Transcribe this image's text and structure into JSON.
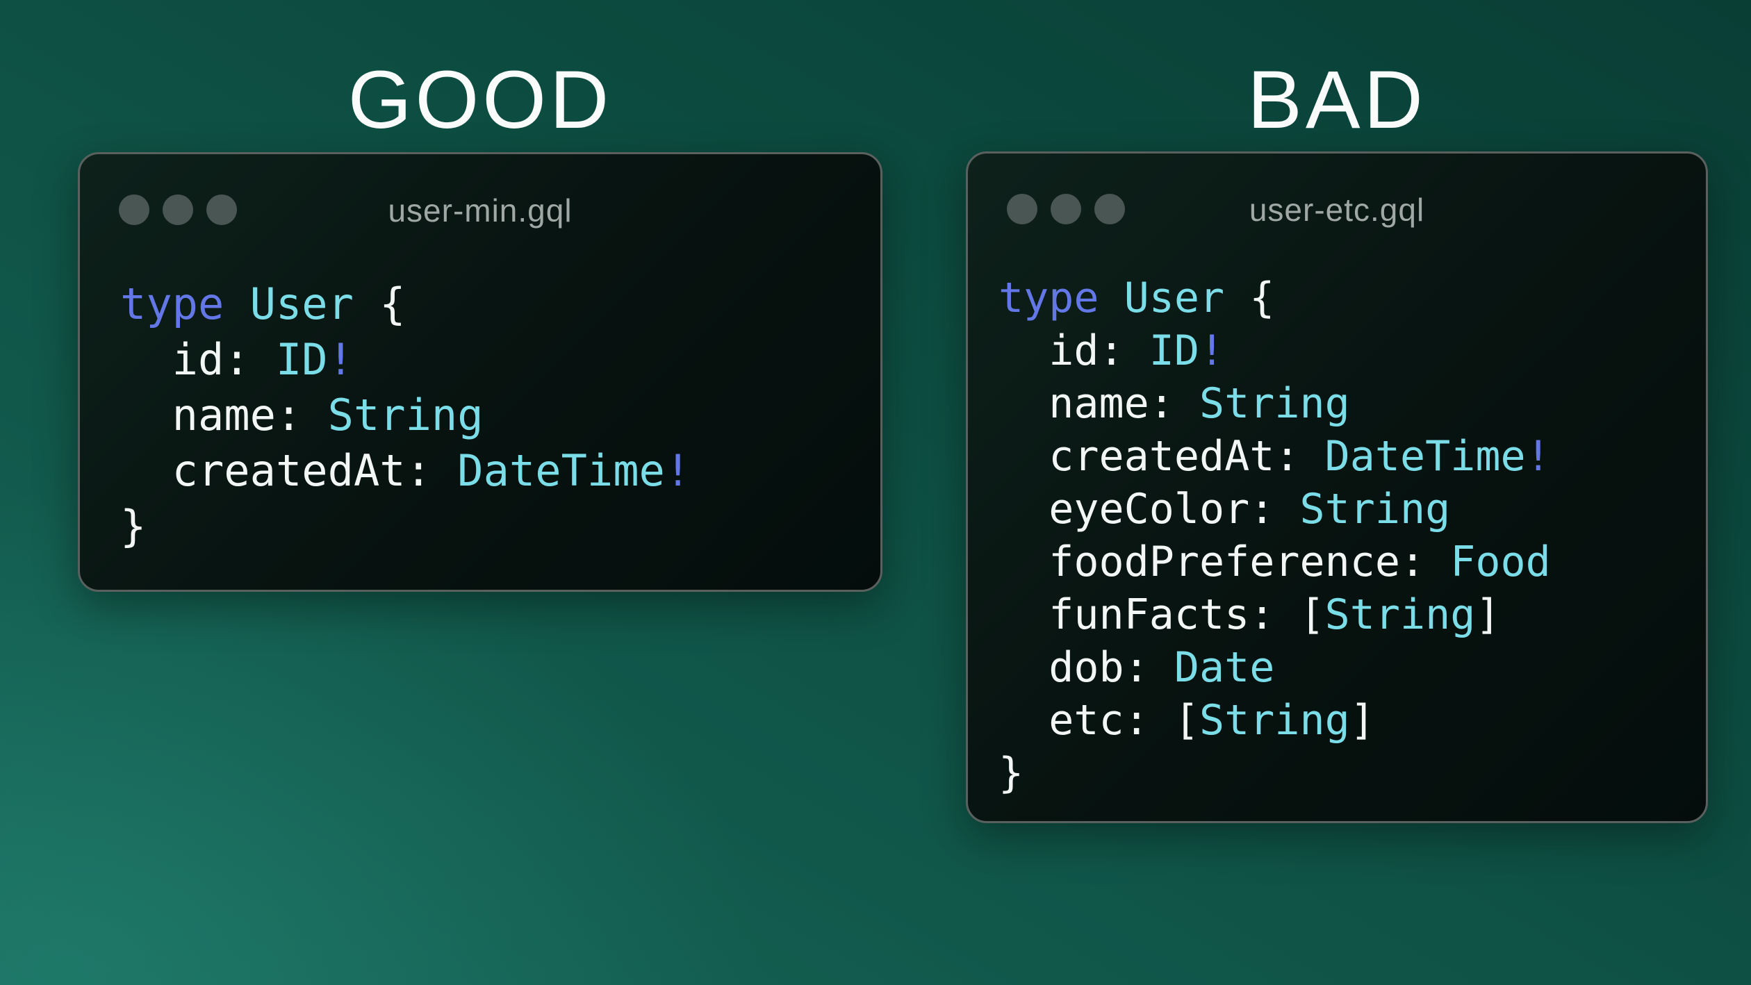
{
  "titles": {
    "good": "GOOD",
    "bad": "BAD"
  },
  "colors": {
    "keyword": "#6378e6",
    "type_name": "#7bdde8",
    "plain": "#f2f6f5",
    "filename": "#a0a8a5",
    "title": "#fafcfb",
    "window_border": "#59605d",
    "dot": "#4a5653"
  },
  "windows": [
    {
      "id": "good",
      "filename": "user-min.gql",
      "code": [
        [
          [
            "kw",
            "type"
          ],
          [
            "plain",
            " "
          ],
          [
            "type",
            "User"
          ],
          [
            "plain",
            " {"
          ]
        ],
        [
          [
            "plain",
            "  id: "
          ],
          [
            "type",
            "ID"
          ],
          [
            "kw",
            "!"
          ]
        ],
        [
          [
            "plain",
            "  name: "
          ],
          [
            "type",
            "String"
          ]
        ],
        [
          [
            "plain",
            "  createdAt: "
          ],
          [
            "type",
            "DateTime"
          ],
          [
            "kw",
            "!"
          ]
        ],
        [
          [
            "plain",
            "}"
          ]
        ]
      ]
    },
    {
      "id": "bad",
      "filename": "user-etc.gql",
      "code": [
        [
          [
            "kw",
            "type"
          ],
          [
            "plain",
            " "
          ],
          [
            "type",
            "User"
          ],
          [
            "plain",
            " {"
          ]
        ],
        [
          [
            "plain",
            "  id: "
          ],
          [
            "type",
            "ID"
          ],
          [
            "kw",
            "!"
          ]
        ],
        [
          [
            "plain",
            "  name: "
          ],
          [
            "type",
            "String"
          ]
        ],
        [
          [
            "plain",
            "  createdAt: "
          ],
          [
            "type",
            "DateTime"
          ],
          [
            "kw",
            "!"
          ]
        ],
        [
          [
            "plain",
            "  eyeColor: "
          ],
          [
            "type",
            "String"
          ]
        ],
        [
          [
            "plain",
            "  foodPreference: "
          ],
          [
            "type",
            "Food"
          ]
        ],
        [
          [
            "plain",
            "  funFacts: ["
          ],
          [
            "type",
            "String"
          ],
          [
            "plain",
            "]"
          ]
        ],
        [
          [
            "plain",
            "  dob: "
          ],
          [
            "type",
            "Date"
          ]
        ],
        [
          [
            "plain",
            "  etc: ["
          ],
          [
            "type",
            "String"
          ],
          [
            "plain",
            "]"
          ]
        ],
        [
          [
            "plain",
            "}"
          ]
        ]
      ]
    }
  ]
}
